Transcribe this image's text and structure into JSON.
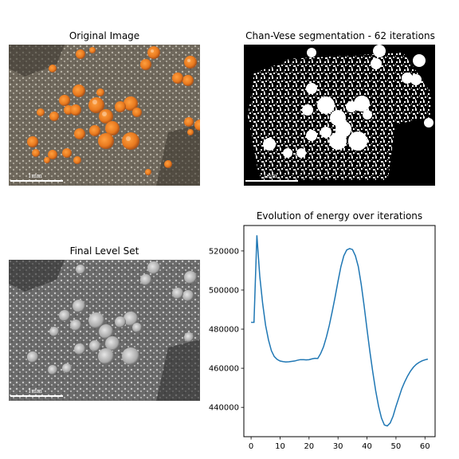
{
  "panels": {
    "original": {
      "title": "Original Image",
      "scalebar_label": "1mm"
    },
    "segmentation": {
      "title": "Chan-Vese segmentation - 62 iterations",
      "scalebar_label": "1mm"
    },
    "level_set": {
      "title": "Final Level Set",
      "scalebar_label": "1mm"
    }
  },
  "chart_data": {
    "type": "line",
    "title": "Evolution of energy over iterations",
    "xlabel": "",
    "ylabel": "",
    "xlim": [
      -2.5,
      63.5
    ],
    "ylim": [
      425000,
      533000
    ],
    "xticks": [
      0,
      10,
      20,
      30,
      40,
      50,
      60
    ],
    "yticks": [
      440000,
      460000,
      480000,
      500000,
      520000
    ],
    "ytick_labels": [
      "440000",
      "460000",
      "480000",
      "500000",
      "520000"
    ],
    "grid": false,
    "color": "#1f77b4",
    "x": [
      0,
      1,
      2,
      3,
      4,
      5,
      6,
      7,
      8,
      9,
      10,
      11,
      12,
      13,
      14,
      15,
      16,
      17,
      18,
      19,
      20,
      21,
      22,
      23,
      24,
      25,
      26,
      27,
      28,
      29,
      30,
      31,
      32,
      33,
      34,
      35,
      36,
      37,
      38,
      39,
      40,
      41,
      42,
      43,
      44,
      45,
      46,
      47,
      48,
      49,
      50,
      51,
      52,
      53,
      54,
      55,
      56,
      57,
      58,
      59,
      60,
      61
    ],
    "y": [
      483500,
      483500,
      528000,
      507000,
      493000,
      482000,
      474500,
      469000,
      466000,
      464500,
      463700,
      463400,
      463200,
      463300,
      463500,
      463700,
      464100,
      464400,
      464400,
      464300,
      464400,
      464800,
      465100,
      465000,
      467500,
      471000,
      476000,
      482000,
      489000,
      496500,
      504500,
      512000,
      517500,
      520500,
      521200,
      520700,
      517500,
      512000,
      503000,
      492000,
      480000,
      468500,
      458000,
      448500,
      440500,
      434500,
      431000,
      430500,
      432000,
      435500,
      440500,
      445000,
      449500,
      453000,
      456000,
      458500,
      460500,
      462000,
      463000,
      463800,
      464300,
      464700
    ]
  },
  "colors": {
    "line": "#1f77b4",
    "lichen_orange": "#f08a28",
    "rock_gray": "#7a7062"
  }
}
